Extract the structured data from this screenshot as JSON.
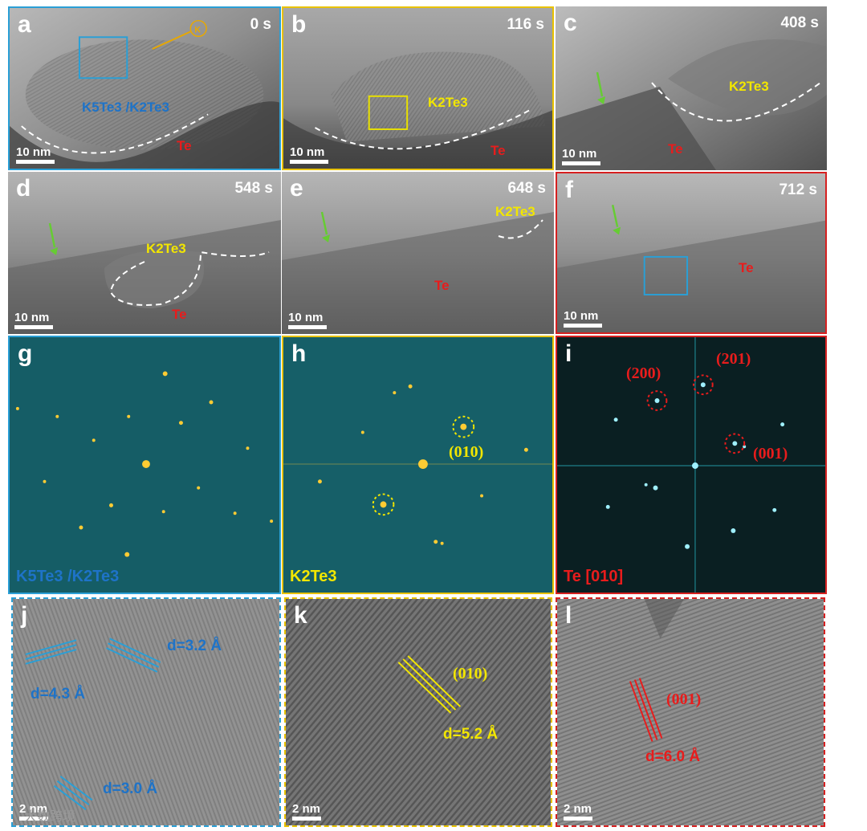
{
  "panels": {
    "a": {
      "letter": "a",
      "time": "0 s",
      "scale": "10 nm",
      "phase": "K5Te3 /K2Te3",
      "te": "Te",
      "frame_color": "#2a9fd6"
    },
    "b": {
      "letter": "b",
      "time": "116 s",
      "scale": "10 nm",
      "phase": "K2Te3",
      "te": "Te",
      "frame_color": "#e8c200"
    },
    "c": {
      "letter": "c",
      "time": "408 s",
      "scale": "10 nm",
      "phase": "K2Te3",
      "te": "Te"
    },
    "d": {
      "letter": "d",
      "time": "548 s",
      "scale": "10 nm",
      "phase": "K2Te3",
      "te": "Te"
    },
    "e": {
      "letter": "e",
      "time": "648 s",
      "scale": "10 nm",
      "phase": "K2Te3",
      "te": "Te"
    },
    "f": {
      "letter": "f",
      "time": "712 s",
      "scale": "10 nm",
      "te": "Te",
      "frame_color": "#d62020"
    },
    "g": {
      "letter": "g",
      "caption": "K5Te3 /K2Te3"
    },
    "h": {
      "letter": "h",
      "caption": "K2Te3",
      "miller": "(010)"
    },
    "i": {
      "letter": "i",
      "caption": "Te [010]",
      "m200": "(200)",
      "m201": "(201)",
      "m001": "(001)"
    },
    "j": {
      "letter": "j",
      "scale": "2 nm",
      "d1": "d=3.2 Å",
      "d2": "d=4.3 Å",
      "d3": "d=3.0 Å"
    },
    "k": {
      "letter": "k",
      "scale": "2 nm",
      "miller": "(010)",
      "d": "d=5.2 Å"
    },
    "l": {
      "letter": "l",
      "scale": "2 nm",
      "miller": "(001)",
      "d": "d=6.0 Å"
    }
  },
  "colors": {
    "blue": "#1e73c8",
    "yellow": "#f2e600",
    "red": "#e81c1c",
    "green": "#66cc33"
  },
  "watermark": "大数跨境"
}
